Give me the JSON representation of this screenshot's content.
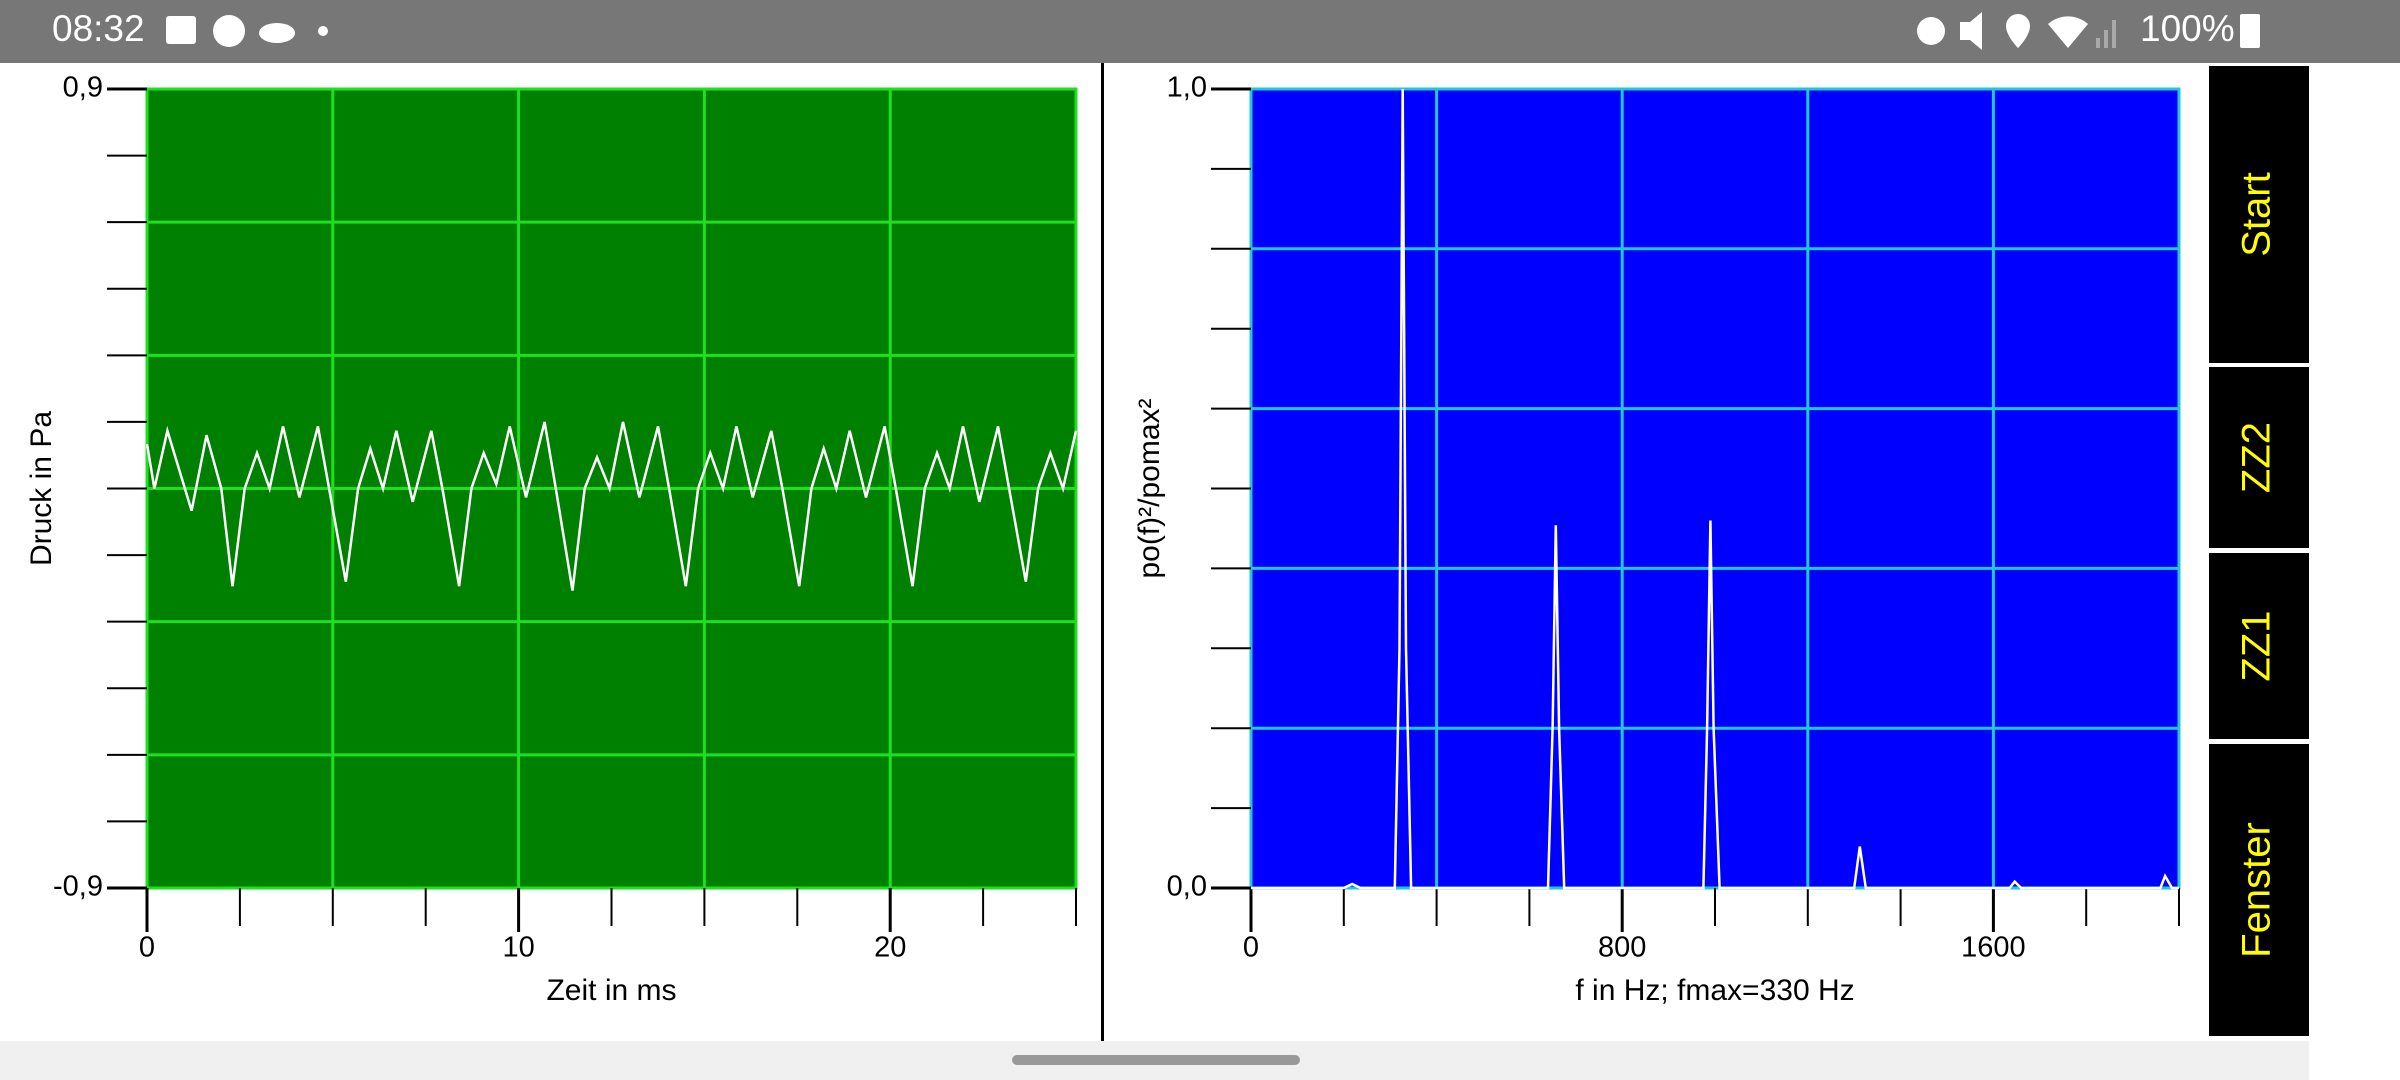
{
  "status_bar": {
    "time": "08:32",
    "battery": "100%"
  },
  "chart_data": [
    {
      "type": "line",
      "y_label": "Druck in Pa",
      "x_label": "Zeit in ms",
      "x": [
        0,
        0.2,
        0.55,
        1.2,
        1.6,
        2.0,
        2.3,
        2.63,
        2.96,
        3.3,
        3.66,
        4.1,
        4.6,
        4.9,
        5.35,
        5.68,
        6.01,
        6.35,
        6.71,
        7.15,
        7.65,
        7.95,
        8.4,
        8.73,
        9.06,
        9.4,
        9.76,
        10.2,
        10.7,
        11.0,
        11.45,
        11.78,
        12.11,
        12.45,
        12.81,
        13.25,
        13.75,
        14.05,
        14.5,
        14.83,
        15.16,
        15.5,
        15.86,
        16.3,
        16.8,
        17.1,
        17.55,
        17.88,
        18.21,
        18.55,
        18.91,
        19.35,
        19.85,
        20.15,
        20.6,
        20.93,
        21.26,
        21.6,
        21.96,
        22.4,
        22.9,
        23.2,
        23.65,
        23.98,
        24.31,
        24.65,
        25.0
      ],
      "values": [
        0.1,
        0.0,
        0.13,
        -0.05,
        0.12,
        0.0,
        -0.22,
        0.0,
        0.08,
        0.0,
        0.14,
        -0.02,
        0.14,
        0.0,
        -0.21,
        0.0,
        0.09,
        0.0,
        0.13,
        -0.03,
        0.13,
        0.0,
        -0.22,
        0.0,
        0.08,
        0.01,
        0.14,
        -0.02,
        0.15,
        0.0,
        -0.23,
        0.0,
        0.07,
        0.0,
        0.15,
        -0.02,
        0.14,
        0.0,
        -0.22,
        0.0,
        0.08,
        0.0,
        0.14,
        -0.02,
        0.13,
        0.0,
        -0.22,
        0.0,
        0.09,
        0.0,
        0.13,
        -0.02,
        0.14,
        0.0,
        -0.22,
        0.0,
        0.08,
        0.0,
        0.14,
        -0.03,
        0.14,
        0.0,
        -0.21,
        0.0,
        0.08,
        0.0,
        0.13
      ],
      "color": "#ffffff",
      "background": "#008000",
      "grid_color": "#1ee01e",
      "xlim": [
        0,
        25
      ],
      "ylim": [
        -0.9,
        0.9
      ],
      "xticks": [
        0,
        10,
        20
      ],
      "x_minor_ticks": [
        0,
        2.5,
        5,
        7.5,
        10,
        12.5,
        15,
        17.5,
        20,
        22.5,
        25
      ],
      "x_grid": [
        5,
        10,
        15,
        20
      ],
      "yticks": [
        {
          "value": 0.9,
          "label": "0,9"
        },
        {
          "value": -0.9,
          "label": "-0,9"
        }
      ],
      "y_minor_ticks": [
        -0.9,
        -0.75,
        -0.6,
        -0.45,
        -0.3,
        -0.15,
        0,
        0.15,
        0.3,
        0.45,
        0.6,
        0.75,
        0.9
      ],
      "y_grid": [
        -0.6,
        -0.3,
        0,
        0.3,
        0.6
      ]
    },
    {
      "type": "line",
      "y_label": "po(f)²/pomax²",
      "x_label": "f in Hz; fmax=330 Hz",
      "x": [
        0,
        200,
        218,
        236,
        310,
        320,
        327,
        334,
        345,
        640,
        650,
        657,
        664,
        675,
        975,
        983,
        990,
        997,
        1010,
        1300,
        1312,
        1325,
        1635,
        1646,
        1660,
        1960,
        1970,
        1985,
        2000
      ],
      "values": [
        0,
        0,
        0.005,
        0,
        0,
        0.3,
        1.0,
        0.3,
        0,
        0,
        0.2,
        0.454,
        0.2,
        0,
        0,
        0.2,
        0.46,
        0.2,
        0,
        0,
        0.052,
        0,
        0,
        0.008,
        0,
        0,
        0.015,
        0,
        0
      ],
      "color": "#ffffff",
      "background": "#0000ff",
      "grid_color": "#20c8d0",
      "xlim": [
        0,
        2000
      ],
      "ylim": [
        0,
        1
      ],
      "xticks": [
        0,
        800,
        1600
      ],
      "x_minor_ticks": [
        0,
        200,
        400,
        600,
        800,
        1000,
        1200,
        1400,
        1600,
        1800,
        2000
      ],
      "x_grid": [
        400,
        800,
        1200,
        1600
      ],
      "yticks": [
        {
          "value": 1,
          "label": "1,0"
        },
        {
          "value": 0,
          "label": "0,0"
        }
      ],
      "y_minor_ticks": [
        0,
        0.1,
        0.2,
        0.3,
        0.4,
        0.5,
        0.6,
        0.7,
        0.8,
        0.9,
        1
      ],
      "y_grid": [
        0.2,
        0.4,
        0.6,
        0.8
      ]
    }
  ],
  "buttons": [
    "Start",
    "ZZ2",
    "ZZ1",
    "Fenster"
  ]
}
